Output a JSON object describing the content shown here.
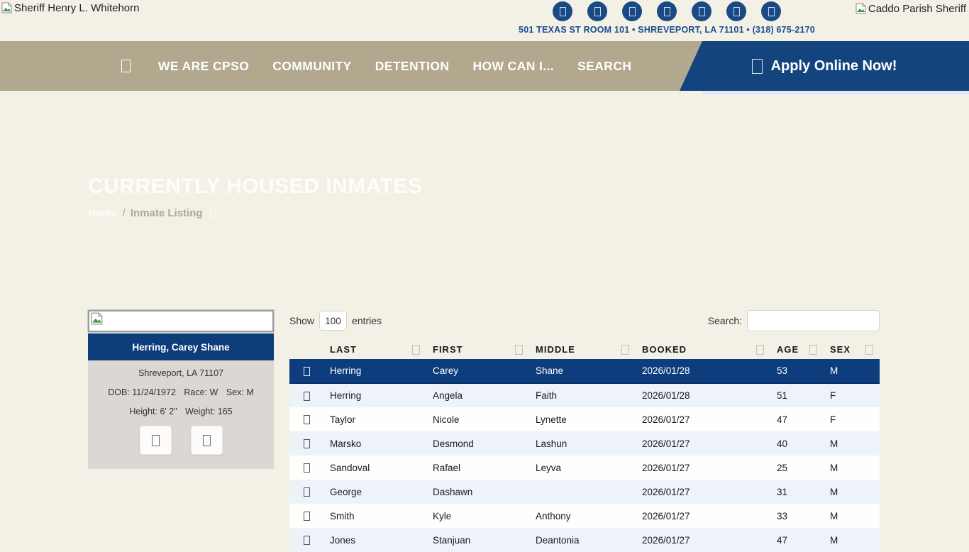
{
  "header": {
    "logo_left_alt": "Sheriff Henry L. Whitehorn",
    "logo_right_alt": "Caddo Parish Sheriff",
    "address": "501 TEXAS ST ROOM 101 • SHREVEPORT, LA 71101 • (318) 675-2170",
    "social_icons": [
      "social-icon-1",
      "social-icon-2",
      "social-icon-3",
      "social-icon-4",
      "social-icon-5",
      "social-icon-6",
      "social-icon-7"
    ]
  },
  "nav": {
    "items": [
      "WE ARE CPSO",
      "COMMUNITY",
      "DETENTION",
      "HOW CAN I...",
      "SEARCH"
    ],
    "apply_label": "Apply Online Now!"
  },
  "hero": {
    "title": "CURRENTLY HOUSED INMATES",
    "breadcrumb": {
      "home": "Home",
      "separator": "/",
      "current": "Inmate Listing"
    }
  },
  "inmate_card": {
    "name": "Herring, Carey Shane",
    "location": "Shreveport, LA 71107",
    "dob_label": "DOB:",
    "dob": "11/24/1972",
    "race_label": "Race:",
    "race": "W",
    "sex_label": "Sex:",
    "sex": "M",
    "height_label": "Height:",
    "height": "6' 2\"",
    "weight_label": "Weight:",
    "weight": "165"
  },
  "table": {
    "show_label": "Show",
    "page_size": "100",
    "entries_label": "entries",
    "search_label": "Search:",
    "search_value": "",
    "columns": [
      "LAST",
      "FIRST",
      "MIDDLE",
      "BOOKED",
      "AGE",
      "SEX"
    ],
    "rows": [
      {
        "last": "Herring",
        "first": "Carey",
        "middle": "Shane",
        "booked": "2026/01/28",
        "age": "53",
        "sex": "M",
        "selected": true
      },
      {
        "last": "Herring",
        "first": "Angela",
        "middle": "Faith",
        "booked": "2026/01/28",
        "age": "51",
        "sex": "F"
      },
      {
        "last": "Taylor",
        "first": "Nicole",
        "middle": "Lynette",
        "booked": "2026/01/27",
        "age": "47",
        "sex": "F"
      },
      {
        "last": "Marsko",
        "first": "Desmond",
        "middle": "Lashun",
        "booked": "2026/01/27",
        "age": "40",
        "sex": "M"
      },
      {
        "last": "Sandoval",
        "first": "Rafael",
        "middle": "Leyva",
        "booked": "2026/01/27",
        "age": "25",
        "sex": "M"
      },
      {
        "last": "George",
        "first": "Dashawn",
        "middle": "",
        "booked": "2026/01/27",
        "age": "31",
        "sex": "M"
      },
      {
        "last": "Smith",
        "first": "Kyle",
        "middle": "Anthony",
        "booked": "2026/01/27",
        "age": "33",
        "sex": "M"
      },
      {
        "last": "Jones",
        "first": "Stanjuan",
        "middle": "Deantonia",
        "booked": "2026/01/27",
        "age": "47",
        "sex": "M"
      }
    ]
  },
  "colors": {
    "navy": "#14447e",
    "tan": "#b1a88d",
    "cream_bg": "#f3f0e6",
    "selected_row": "#0d3d7c",
    "stripe_row": "#eef3fa",
    "address_text": "#1b4e8f"
  }
}
